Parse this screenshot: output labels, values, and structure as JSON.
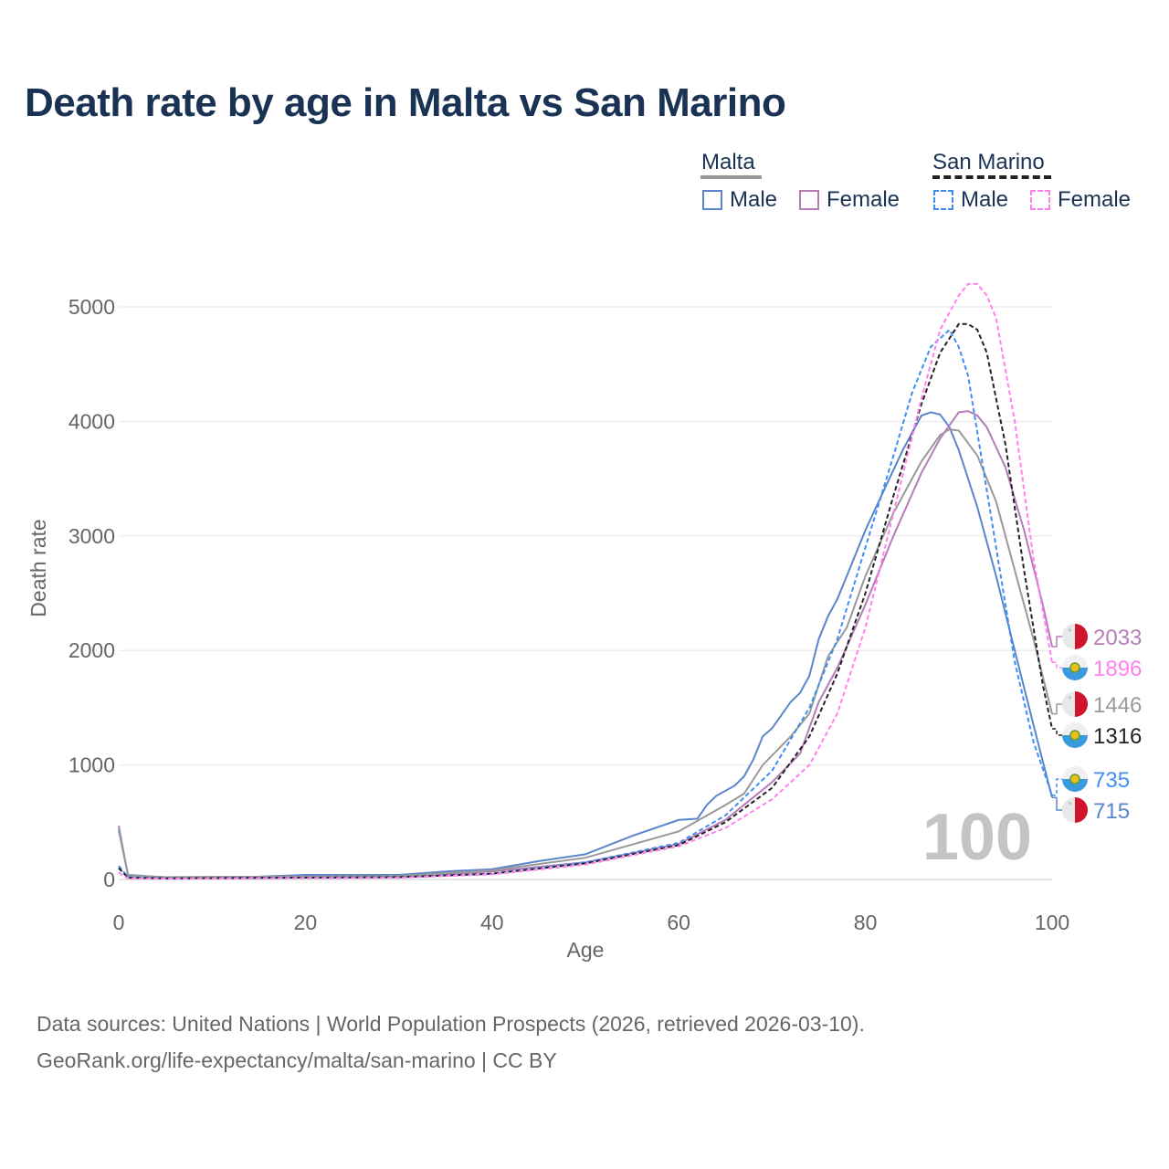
{
  "title": "Death rate by age in Malta vs San Marino",
  "legend": {
    "groups": [
      {
        "name": "Malta",
        "male": "Male",
        "female": "Female"
      },
      {
        "name": "San Marino",
        "male": "Male",
        "female": "Female"
      }
    ]
  },
  "watermark": "100",
  "footer": {
    "line1": "Data sources: United Nations | World Population Prospects (2026, retrieved 2026-03-10).",
    "line2": "GeoRank.org/life-expectancy/malta/san-marino | CC BY"
  },
  "chart_data": {
    "type": "line",
    "xlabel": "Age",
    "ylabel": "Death rate",
    "xlim": [
      0,
      100
    ],
    "ylim": [
      0,
      5000
    ],
    "xticks": [
      0,
      20,
      40,
      60,
      80,
      100
    ],
    "yticks": [
      0,
      1000,
      2000,
      3000,
      4000,
      5000
    ],
    "grid": true,
    "legend_placement": "top-right",
    "series": [
      {
        "name": "Malta Male",
        "country": "Malta",
        "color": "#5a85cc",
        "dash": false,
        "end_label": "715",
        "points": [
          [
            0,
            430
          ],
          [
            1,
            40
          ],
          [
            5,
            20
          ],
          [
            15,
            25
          ],
          [
            20,
            40
          ],
          [
            30,
            40
          ],
          [
            35,
            70
          ],
          [
            40,
            90
          ],
          [
            45,
            160
          ],
          [
            50,
            220
          ],
          [
            55,
            380
          ],
          [
            60,
            520
          ],
          [
            62,
            530
          ],
          [
            63,
            650
          ],
          [
            64,
            730
          ],
          [
            66,
            820
          ],
          [
            67,
            900
          ],
          [
            68,
            1050
          ],
          [
            69,
            1250
          ],
          [
            70,
            1320
          ],
          [
            72,
            1550
          ],
          [
            73,
            1630
          ],
          [
            74,
            1780
          ],
          [
            75,
            2100
          ],
          [
            76,
            2300
          ],
          [
            77,
            2450
          ],
          [
            78,
            2650
          ],
          [
            80,
            3050
          ],
          [
            82,
            3400
          ],
          [
            84,
            3750
          ],
          [
            86,
            4050
          ],
          [
            87,
            4080
          ],
          [
            88,
            4060
          ],
          [
            89,
            3950
          ],
          [
            90,
            3750
          ],
          [
            92,
            3250
          ],
          [
            94,
            2650
          ],
          [
            96,
            2000
          ],
          [
            98,
            1350
          ],
          [
            100,
            715
          ]
        ]
      },
      {
        "name": "Malta Female",
        "country": "Malta",
        "color": "#b57cb8",
        "dash": false,
        "end_label": "2033",
        "points": [
          [
            0,
            470
          ],
          [
            1,
            30
          ],
          [
            5,
            20
          ],
          [
            30,
            25
          ],
          [
            40,
            70
          ],
          [
            50,
            150
          ],
          [
            60,
            310
          ],
          [
            65,
            520
          ],
          [
            70,
            850
          ],
          [
            73,
            1100
          ],
          [
            75,
            1550
          ],
          [
            77,
            1850
          ],
          [
            80,
            2400
          ],
          [
            83,
            3000
          ],
          [
            86,
            3550
          ],
          [
            88,
            3850
          ],
          [
            90,
            4080
          ],
          [
            91,
            4090
          ],
          [
            92,
            4050
          ],
          [
            93,
            3950
          ],
          [
            95,
            3600
          ],
          [
            97,
            3050
          ],
          [
            99,
            2400
          ],
          [
            100,
            2033
          ]
        ]
      },
      {
        "name": "Malta Total",
        "country": "Malta",
        "color": "#999999",
        "dash": false,
        "end_label": "1446",
        "points": [
          [
            0,
            450
          ],
          [
            1,
            35
          ],
          [
            5,
            20
          ],
          [
            30,
            30
          ],
          [
            40,
            80
          ],
          [
            50,
            190
          ],
          [
            60,
            420
          ],
          [
            65,
            650
          ],
          [
            67,
            750
          ],
          [
            69,
            1000
          ],
          [
            72,
            1250
          ],
          [
            74,
            1450
          ],
          [
            76,
            1950
          ],
          [
            78,
            2200
          ],
          [
            80,
            2650
          ],
          [
            83,
            3200
          ],
          [
            86,
            3650
          ],
          [
            88,
            3880
          ],
          [
            89,
            3930
          ],
          [
            90,
            3920
          ],
          [
            92,
            3700
          ],
          [
            94,
            3300
          ],
          [
            96,
            2700
          ],
          [
            98,
            2100
          ],
          [
            100,
            1446
          ]
        ]
      },
      {
        "name": "San Marino Male",
        "country": "San Marino",
        "color": "#3f8ef5",
        "dash": true,
        "end_label": "735",
        "points": [
          [
            0,
            120
          ],
          [
            1,
            20
          ],
          [
            5,
            10
          ],
          [
            30,
            20
          ],
          [
            40,
            50
          ],
          [
            50,
            150
          ],
          [
            60,
            320
          ],
          [
            65,
            560
          ],
          [
            70,
            950
          ],
          [
            74,
            1500
          ],
          [
            77,
            2100
          ],
          [
            80,
            2900
          ],
          [
            83,
            3700
          ],
          [
            85,
            4250
          ],
          [
            87,
            4650
          ],
          [
            89,
            4800
          ],
          [
            90,
            4650
          ],
          [
            91,
            4400
          ],
          [
            92,
            3900
          ],
          [
            94,
            2900
          ],
          [
            96,
            1900
          ],
          [
            98,
            1200
          ],
          [
            100,
            735
          ]
        ]
      },
      {
        "name": "San Marino Total",
        "country": "San Marino",
        "color": "#222222",
        "dash": true,
        "end_label": "1316",
        "points": [
          [
            0,
            100
          ],
          [
            1,
            15
          ],
          [
            5,
            10
          ],
          [
            30,
            20
          ],
          [
            40,
            50
          ],
          [
            50,
            140
          ],
          [
            60,
            300
          ],
          [
            65,
            500
          ],
          [
            70,
            800
          ],
          [
            74,
            1250
          ],
          [
            77,
            1800
          ],
          [
            80,
            2500
          ],
          [
            83,
            3350
          ],
          [
            86,
            4150
          ],
          [
            88,
            4600
          ],
          [
            90,
            4850
          ],
          [
            91,
            4850
          ],
          [
            92,
            4800
          ],
          [
            93,
            4600
          ],
          [
            95,
            3800
          ],
          [
            97,
            2700
          ],
          [
            99,
            1700
          ],
          [
            100,
            1316
          ]
        ]
      },
      {
        "name": "San Marino Female",
        "country": "San Marino",
        "color": "#ff80f0",
        "dash": true,
        "end_label": "1896",
        "points": [
          [
            0,
            60
          ],
          [
            1,
            10
          ],
          [
            5,
            8
          ],
          [
            30,
            15
          ],
          [
            40,
            45
          ],
          [
            50,
            130
          ],
          [
            60,
            290
          ],
          [
            65,
            450
          ],
          [
            70,
            700
          ],
          [
            74,
            1000
          ],
          [
            77,
            1450
          ],
          [
            80,
            2200
          ],
          [
            83,
            3200
          ],
          [
            86,
            4200
          ],
          [
            88,
            4800
          ],
          [
            90,
            5100
          ],
          [
            91,
            5200
          ],
          [
            92,
            5200
          ],
          [
            93,
            5100
          ],
          [
            94,
            4900
          ],
          [
            96,
            4000
          ],
          [
            98,
            2800
          ],
          [
            100,
            1896
          ]
        ]
      }
    ]
  }
}
